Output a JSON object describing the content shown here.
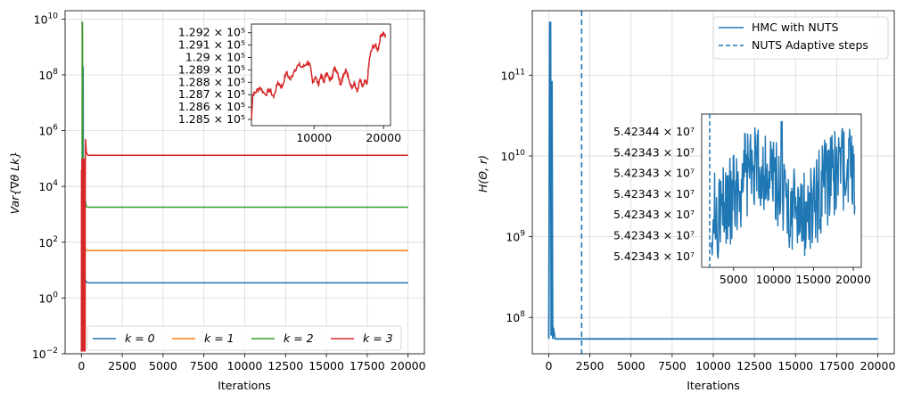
{
  "chart_data": [
    {
      "type": "line",
      "panel": "left",
      "xlabel": "Iterations",
      "ylabel": "Var{∇θ Lk}",
      "yscale": "log",
      "xlim": [
        -1000,
        21000
      ],
      "ylim_exp": [
        -2,
        10.3
      ],
      "x_ticks": [
        0,
        2500,
        5000,
        7500,
        10000,
        12500,
        15000,
        17500,
        20000
      ],
      "x_tick_labels": [
        "0",
        "2500",
        "5000",
        "7500",
        "10000",
        "12500",
        "15000",
        "17500",
        "20000"
      ],
      "y_tick_exps": [
        -2,
        0,
        2,
        4,
        6,
        8,
        10
      ],
      "y_tick_labels": [
        {
          "base": "10",
          "exp": "−2"
        },
        {
          "base": "10",
          "exp": "0"
        },
        {
          "base": "10",
          "exp": "2"
        },
        {
          "base": "10",
          "exp": "4"
        },
        {
          "base": "10",
          "exp": "6"
        },
        {
          "base": "10",
          "exp": "8"
        },
        {
          "base": "10",
          "exp": "10"
        }
      ],
      "grid": true,
      "legend_position": "bottom, horizontal",
      "series": [
        {
          "name": "k = 0",
          "color": "#1f77b4",
          "plateau": 3.5,
          "peaks": [
            8000000000.0,
            200000000.0,
            5
          ]
        },
        {
          "name": "k = 1",
          "color": "#ff7f0e",
          "plateau": 50,
          "peaks": [
            8000000000.0,
            60
          ]
        },
        {
          "name": "k = 2",
          "color": "#2ca02c",
          "plateau": 1800,
          "peaks": [
            8000000000.0,
            4000
          ]
        },
        {
          "name": "k = 3",
          "color": "#d62728",
          "plateau": 130000,
          "peaks": [
            500000,
            130000
          ]
        }
      ],
      "inset": {
        "color": "#d62728",
        "x_ticks": [
          10000,
          20000
        ],
        "x_tick_labels": [
          "10000",
          "20000"
        ],
        "y_tick_labels": [
          "1.292 × 10⁵",
          "1.291 × 10⁵",
          "1.29 × 10⁵",
          "1.289 × 10⁵",
          "1.288 × 10⁵",
          "1.287 × 10⁵",
          "1.286 × 10⁵",
          "1.285 × 10⁵"
        ],
        "y_tick_values": [
          129200,
          129100,
          129000,
          128900,
          128800,
          128700,
          128600,
          128500
        ],
        "xlim": [
          1000,
          21000
        ],
        "ylim": [
          128450,
          129270
        ],
        "points": [
          [
            1000,
            128500
          ],
          [
            1200,
            128700
          ],
          [
            1600,
            128720
          ],
          [
            2200,
            128760
          ],
          [
            3000,
            128700
          ],
          [
            3600,
            128740
          ],
          [
            4200,
            128680
          ],
          [
            4800,
            128800
          ],
          [
            5400,
            128760
          ],
          [
            6000,
            128880
          ],
          [
            6600,
            128820
          ],
          [
            7200,
            128900
          ],
          [
            7800,
            128940
          ],
          [
            8400,
            128920
          ],
          [
            9000,
            128960
          ],
          [
            9400,
            128940
          ],
          [
            9800,
            128800
          ],
          [
            10200,
            128850
          ],
          [
            10600,
            128780
          ],
          [
            11000,
            128860
          ],
          [
            11400,
            128800
          ],
          [
            11800,
            128880
          ],
          [
            12200,
            128820
          ],
          [
            12600,
            128850
          ],
          [
            13000,
            128920
          ],
          [
            13400,
            128880
          ],
          [
            13800,
            128780
          ],
          [
            14200,
            128860
          ],
          [
            14600,
            128900
          ],
          [
            15000,
            128820
          ],
          [
            15400,
            128760
          ],
          [
            15800,
            128800
          ],
          [
            16200,
            128720
          ],
          [
            16600,
            128820
          ],
          [
            17000,
            128760
          ],
          [
            17300,
            128810
          ],
          [
            17600,
            128780
          ],
          [
            18000,
            129000
          ],
          [
            18400,
            129080
          ],
          [
            18800,
            129100
          ],
          [
            19200,
            129060
          ],
          [
            19600,
            129180
          ],
          [
            20000,
            129200
          ],
          [
            20300,
            129160
          ]
        ]
      }
    },
    {
      "type": "line",
      "panel": "right",
      "xlabel": "Iterations",
      "ylabel": "H(Θ, r)",
      "yscale": "log",
      "xlim": [
        -1000,
        21000
      ],
      "ylim_exp": [
        7.55,
        11.8
      ],
      "x_ticks": [
        0,
        2500,
        5000,
        7500,
        10000,
        12500,
        15000,
        17500,
        20000
      ],
      "x_tick_labels": [
        "0",
        "2500",
        "5000",
        "7500",
        "10000",
        "12500",
        "15000",
        "17500",
        "20000"
      ],
      "y_tick_exps": [
        8,
        9,
        10,
        11
      ],
      "y_tick_labels": [
        {
          "base": "10",
          "exp": "8"
        },
        {
          "base": "10",
          "exp": "9"
        },
        {
          "base": "10",
          "exp": "10"
        },
        {
          "base": "10",
          "exp": "11"
        }
      ],
      "grid": true,
      "legend_position": "top-right",
      "series": [
        {
          "name": "HMC with NUTS",
          "color": "#1f77b4",
          "plateau": 54234300,
          "peak": 450000000000
        },
        {
          "name": "NUTS Adaptive steps",
          "color": "#1f77b4",
          "style": "dashed",
          "x": 2000
        }
      ],
      "inset": {
        "color": "#1f77b4",
        "dashed_x": 2000,
        "x_ticks": [
          5000,
          10000,
          15000,
          20000
        ],
        "x_tick_labels": [
          "5000",
          "10000",
          "15000",
          "20000"
        ],
        "y_tick_labels": [
          "5.42344 × 10⁷",
          "5.42343 × 10⁷",
          "5.42343 × 10⁷",
          "5.42343 × 10⁷",
          "5.42343 × 10⁷",
          "5.42343 × 10⁷",
          "5.42343 × 10⁷"
        ],
        "xlim": [
          1000,
          21000
        ]
      }
    }
  ]
}
